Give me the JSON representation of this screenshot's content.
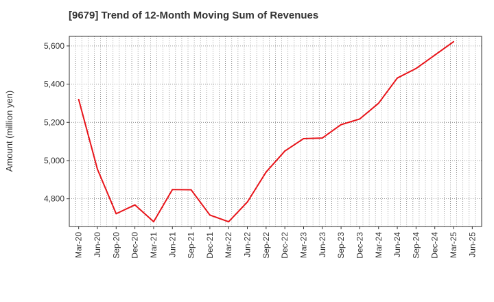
{
  "chart_data": {
    "type": "line",
    "title": "[9679]  Trend of 12-Month Moving Sum of Revenues",
    "xlabel": "",
    "ylabel": "Amount (million yen)",
    "ylim": [
      4655,
      5650
    ],
    "yticks": [
      4800,
      5000,
      5200,
      5400,
      5600
    ],
    "ytick_labels": [
      "4,800",
      "5,000",
      "5,200",
      "5,400",
      "5,600"
    ],
    "categories": [
      "Mar-20",
      "Jun-20",
      "Sep-20",
      "Dec-20",
      "Mar-21",
      "Jun-21",
      "Sep-21",
      "Dec-21",
      "Mar-22",
      "Jun-22",
      "Sep-22",
      "Dec-22",
      "Mar-23",
      "Jun-23",
      "Sep-23",
      "Dec-23",
      "Mar-24",
      "Jun-24",
      "Sep-24",
      "Dec-24",
      "Mar-25",
      "Jun-25"
    ],
    "series": [
      {
        "color": "#e8141a",
        "values": [
          5320,
          4955,
          4722,
          4768,
          4680,
          4848,
          4847,
          4715,
          4680,
          4783,
          4940,
          5050,
          5115,
          5118,
          5188,
          5218,
          5300,
          5432,
          5482,
          5552,
          5622,
          null
        ]
      }
    ],
    "grid": true,
    "grid_style": "dotted",
    "legend": "none"
  }
}
